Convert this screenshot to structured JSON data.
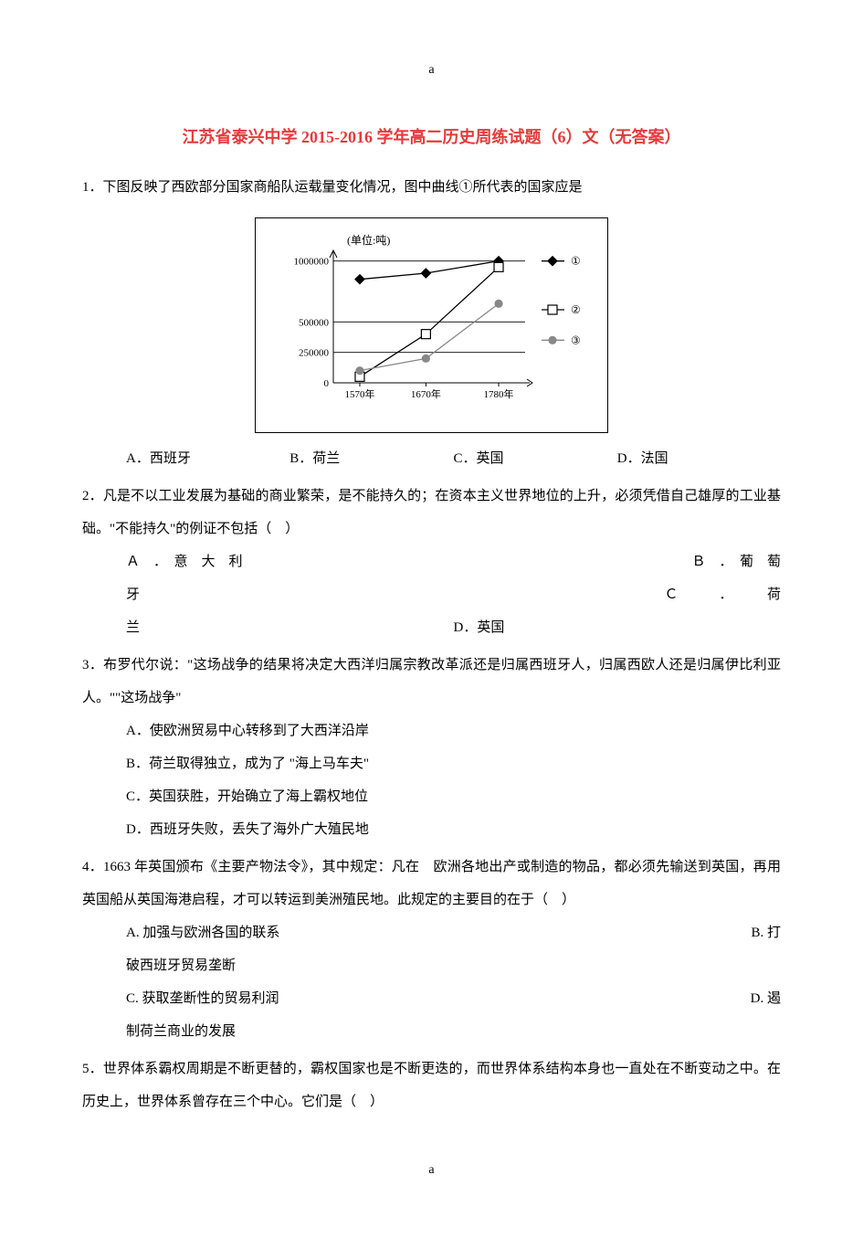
{
  "header_letter": "a",
  "footer_letter": "a",
  "title": {
    "text": "江苏省泰兴中学 2015-2016 学年高二历史周练试题（6）文（无答案）",
    "color": "#e63a3a"
  },
  "q1": {
    "num": "1．",
    "text": "下图反映了西欧部分国家商船队运载量变化情况，图中曲线①所代表的国家应是",
    "options": {
      "a": "A．西班牙",
      "b": "B．荷兰",
      "c": "C．英国",
      "d": "D．法国"
    },
    "chart": {
      "unit_label": "(单位:吨)",
      "y_labels": [
        "1000000",
        "500000",
        "250000",
        "0"
      ],
      "x_labels": [
        "1570年",
        "1670年",
        "1780年"
      ],
      "legend": [
        "①",
        "②",
        "③"
      ],
      "series": {
        "s1": {
          "marker": "diamond",
          "color": "#000000",
          "fill": true,
          "points": [
            [
              1570,
              850000
            ],
            [
              1670,
              900000
            ],
            [
              1780,
              1000000
            ]
          ]
        },
        "s2": {
          "marker": "square",
          "color": "#000000",
          "fill": false,
          "points": [
            [
              1570,
              50000
            ],
            [
              1670,
              400000
            ],
            [
              1780,
              950000
            ]
          ]
        },
        "s3": {
          "marker": "circle",
          "color": "#888888",
          "fill": true,
          "points": [
            [
              1570,
              100000
            ],
            [
              1670,
              200000
            ],
            [
              1780,
              650000
            ]
          ]
        }
      },
      "x_range": [
        1530,
        1820
      ],
      "y_range": [
        0,
        1050000
      ]
    }
  },
  "q2": {
    "num": "2．",
    "text": "凡是不以工业发展为基础的商业繁荣，是不能持久的；在资本主义世界地位的上升，必须凭借自己雄厚的工业基础。\"不能持久\"的例证不包括（　）",
    "line1_left": "Ａ　．　意　大　利",
    "line1_right": "Ｂ　．　葡　萄",
    "line2_left": "牙",
    "line2_right": "Ｃ　　　．　　　荷",
    "line3_left": "兰",
    "line3_right": "D．英国"
  },
  "q3": {
    "num": "3．",
    "text": "布罗代尔说：\"这场战争的结果将决定大西洋归属宗教改革派还是归属西班牙人，归属西欧人还是归属伊比利亚人。\"\"这场战争\"",
    "opts": {
      "a": "A．使欧洲贸易中心转移到了大西洋沿岸",
      "b": "B．荷兰取得独立，成为了 \"海上马车夫\"",
      "c": "C．英国获胜，开始确立了海上霸权地位",
      "d": "D．西班牙失败，丢失了海外广大殖民地"
    }
  },
  "q4": {
    "num": "4．",
    "text": "1663 年英国颁布《主要产物法令》，其中规定：凡在　欧洲各地出产或制造的物品，都必须先输送到英国，再用英国船从英国海港启程，才可以转运到美洲殖民地。此规定的主要目的在于（　）",
    "optA": "A. 加强与欧洲各国的联系",
    "optB": "B. 打",
    "optB2": "破西班牙贸易垄断",
    "optC": "C. 获取垄断性的贸易利润",
    "optD": "D. 遏",
    "optD2": "制荷兰商业的发展"
  },
  "q5": {
    "num": "5．",
    "text": "世界体系霸权周期是不断更替的，霸权国家也是不断更迭的，而世界体系结构本身也一直处在不断变动之中。在历史上，世界体系曾存在三个中心。它们是（　）"
  }
}
